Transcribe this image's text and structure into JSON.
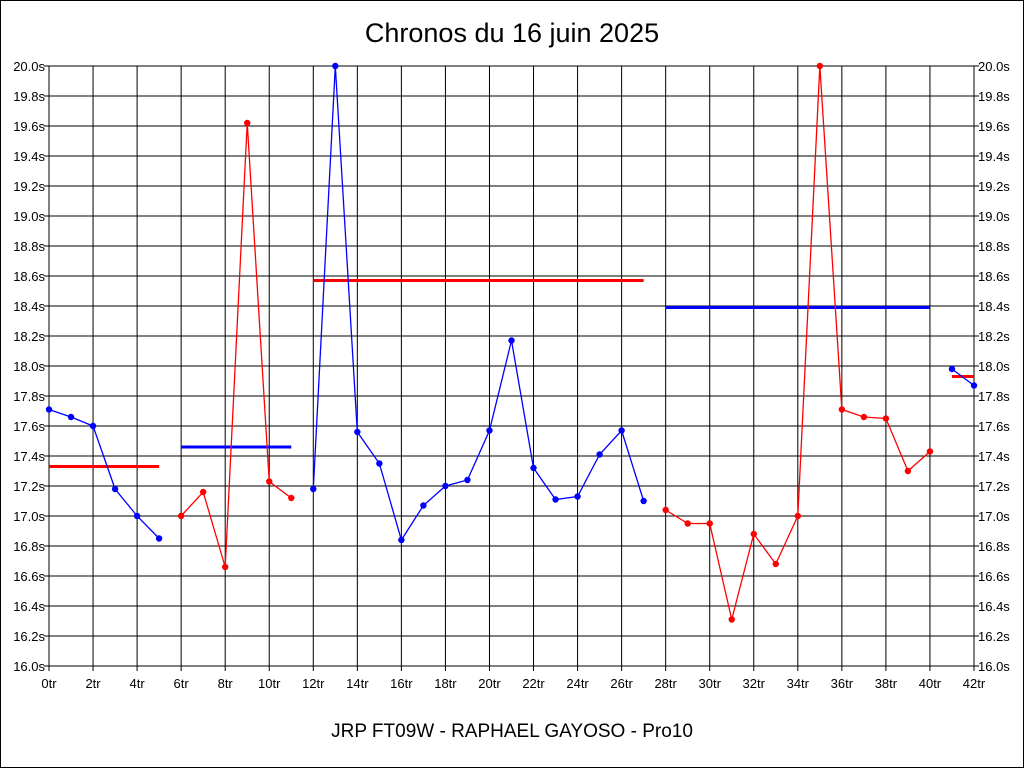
{
  "chart_data": {
    "type": "line",
    "title": "Chronos du 16 juin 2025",
    "footer": "JRP FT09W - RAPHAEL GAYOSO - Pro10",
    "xlabel": "",
    "ylabel": "",
    "xlim": [
      0,
      42
    ],
    "ylim": [
      16.0,
      20.0
    ],
    "x_ticks": [
      "0tr",
      "2tr",
      "4tr",
      "6tr",
      "8tr",
      "10tr",
      "12tr",
      "14tr",
      "16tr",
      "18tr",
      "20tr",
      "22tr",
      "24tr",
      "26tr",
      "28tr",
      "30tr",
      "32tr",
      "34tr",
      "36tr",
      "38tr",
      "40tr",
      "42tr"
    ],
    "y_ticks": [
      "16.0s",
      "16.2s",
      "16.4s",
      "16.6s",
      "16.8s",
      "17.0s",
      "17.2s",
      "17.4s",
      "17.6s",
      "17.8s",
      "18.0s",
      "18.2s",
      "18.4s",
      "18.6s",
      "18.8s",
      "19.0s",
      "19.2s",
      "19.4s",
      "19.6s",
      "19.8s",
      "20.0s"
    ],
    "grid": true,
    "colors": {
      "red": "#ff0000",
      "blue": "#0000ff"
    },
    "series": [
      {
        "color": "#0000ff",
        "x": [
          0,
          1,
          2,
          3,
          4,
          5
        ],
        "values": [
          17.71,
          17.66,
          17.6,
          17.18,
          17.0,
          16.85
        ]
      },
      {
        "color": "#ff0000",
        "x": [
          6,
          7,
          8,
          9,
          10,
          11
        ],
        "values": [
          17.0,
          17.16,
          16.66,
          19.62,
          17.23,
          17.12
        ]
      },
      {
        "color": "#0000ff",
        "x": [
          12,
          13,
          14,
          15,
          16,
          17,
          18,
          19,
          20,
          21,
          22,
          23,
          24,
          25,
          26,
          27
        ],
        "values": [
          17.18,
          20.0,
          17.56,
          17.35,
          16.84,
          17.07,
          17.2,
          17.24,
          17.57,
          18.17,
          17.32,
          17.11,
          17.13,
          17.41,
          17.57,
          17.1
        ]
      },
      {
        "color": "#ff0000",
        "x": [
          28,
          29,
          30,
          31,
          32,
          33,
          34,
          35,
          36,
          37,
          38,
          39,
          40
        ],
        "values": [
          17.04,
          16.95,
          16.95,
          16.31,
          16.88,
          16.68,
          17.0,
          20.0,
          17.71,
          17.66,
          17.65,
          17.3,
          17.43
        ]
      },
      {
        "color": "#0000ff",
        "x": [
          41,
          42
        ],
        "values": [
          17.98,
          17.87
        ]
      }
    ],
    "averages": [
      {
        "color": "#ff0000",
        "x_start": 0,
        "x_end": 5,
        "value": 17.33
      },
      {
        "color": "#0000ff",
        "x_start": 6,
        "x_end": 11,
        "value": 17.46
      },
      {
        "color": "#ff0000",
        "x_start": 12,
        "x_end": 27,
        "value": 18.57
      },
      {
        "color": "#0000ff",
        "x_start": 28,
        "x_end": 40,
        "value": 18.39
      },
      {
        "color": "#ff0000",
        "x_start": 41,
        "x_end": 42,
        "value": 17.93
      }
    ]
  }
}
